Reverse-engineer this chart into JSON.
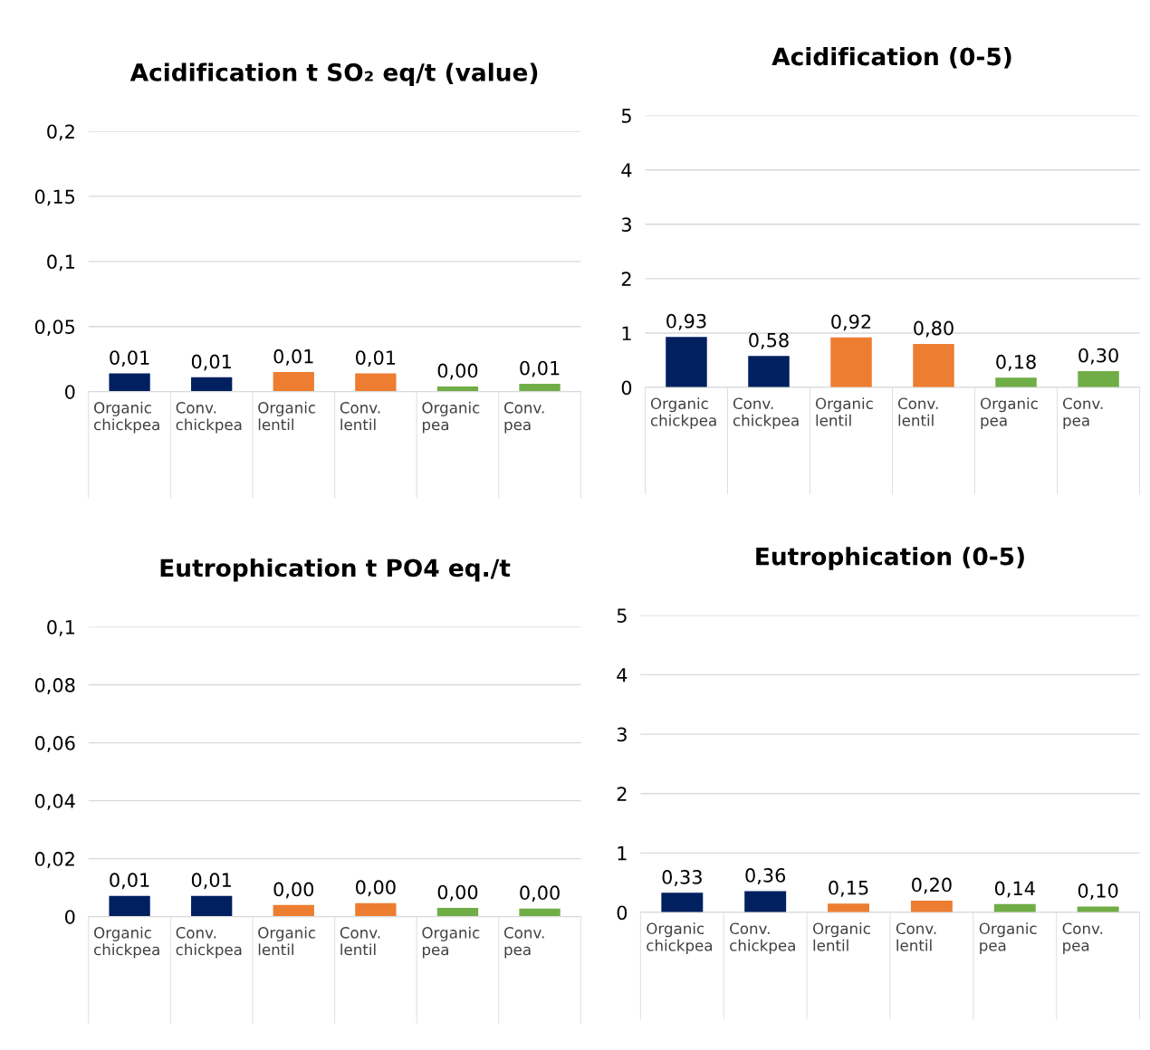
{
  "chart_data": [
    {
      "type": "bar",
      "title": "Acidification t SO₂ eq/t (value)",
      "categories": [
        "Organic chickpea",
        "Conv. chickpea",
        "Organic lentil",
        "Conv. lentil",
        "Organic pea",
        "Conv. pea"
      ],
      "values": [
        0.014,
        0.011,
        0.015,
        0.014,
        0.004,
        0.006
      ],
      "colors": [
        "#002060",
        "#002060",
        "#ed7d31",
        "#ed7d31",
        "#70ad47",
        "#70ad47"
      ],
      "value_labels": [
        "0,01",
        "0,01",
        "0,01",
        "0,01",
        "0,00",
        "0,01"
      ],
      "ylim": [
        0,
        0.2
      ],
      "yticks": [
        0,
        {
          "value": 0.05,
          "label": "0,05"
        },
        {
          "value": 0.1,
          "label": "0,1"
        },
        {
          "value": 0.15,
          "label": "0,15"
        },
        {
          "value": 0.2,
          "label": "0,2"
        }
      ],
      "grid": "y"
    },
    {
      "type": "bar",
      "title": "Acidification (0-5)",
      "categories": [
        "Organic chickpea",
        "Conv. chickpea",
        "Organic lentil",
        "Conv. lentil",
        "Organic pea",
        "Conv. pea"
      ],
      "values": [
        0.93,
        0.58,
        0.92,
        0.8,
        0.18,
        0.3
      ],
      "colors": [
        "#002060",
        "#002060",
        "#ed7d31",
        "#ed7d31",
        "#70ad47",
        "#70ad47"
      ],
      "value_labels": [
        "0,93",
        "0,58",
        "0,92",
        "0,80",
        "0,18",
        "0,30"
      ],
      "ylim": [
        0,
        5
      ],
      "yticks": [
        0,
        1,
        2,
        3,
        4,
        5
      ],
      "grid": "y"
    },
    {
      "type": "bar",
      "title": "Eutrophication t PO4 eq./t",
      "categories": [
        "Organic chickpea",
        "Conv. chickpea",
        "Organic lentil",
        "Conv. lentil",
        "Organic pea",
        "Conv. pea"
      ],
      "values": [
        0.0072,
        0.0072,
        0.004,
        0.0047,
        0.003,
        0.0028
      ],
      "colors": [
        "#002060",
        "#002060",
        "#ed7d31",
        "#ed7d31",
        "#70ad47",
        "#70ad47"
      ],
      "value_labels": [
        "0,01",
        "0,01",
        "0,00",
        "0,00",
        "0,00",
        "0,00"
      ],
      "ylim": [
        0,
        0.1
      ],
      "yticks": [
        0,
        {
          "value": 0.02,
          "label": "0,02"
        },
        {
          "value": 0.04,
          "label": "0,04"
        },
        {
          "value": 0.06,
          "label": "0,06"
        },
        {
          "value": 0.08,
          "label": "0,08"
        },
        {
          "value": 0.1,
          "label": "0,1"
        }
      ],
      "grid": "y"
    },
    {
      "type": "bar",
      "title": "Eutrophication (0-5)",
      "categories": [
        "Organic chickpea",
        "Conv. chickpea",
        "Organic lentil",
        "Conv. lentil",
        "Organic pea",
        "Conv. pea"
      ],
      "values": [
        0.33,
        0.36,
        0.15,
        0.2,
        0.14,
        0.1
      ],
      "colors": [
        "#002060",
        "#002060",
        "#ed7d31",
        "#ed7d31",
        "#70ad47",
        "#70ad47"
      ],
      "value_labels": [
        "0,33",
        "0,36",
        "0,15",
        "0,20",
        "0,14",
        "0,10"
      ],
      "ylim": [
        0,
        5
      ],
      "yticks": [
        0,
        1,
        2,
        3,
        4,
        5
      ],
      "grid": "y"
    }
  ]
}
